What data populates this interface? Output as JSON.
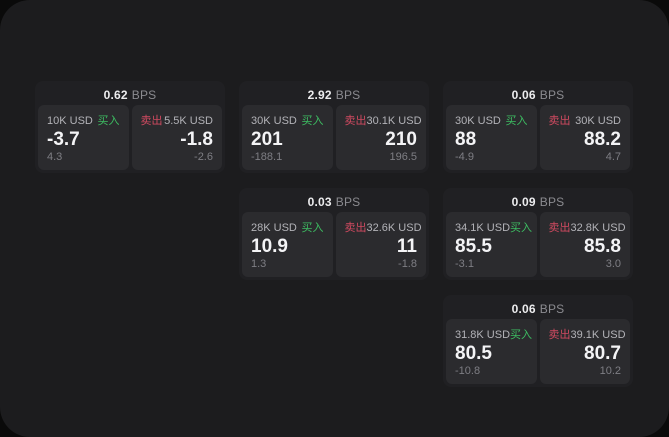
{
  "page": {
    "background": "#1c1c1e",
    "outside_background": "#0a0a0a"
  },
  "colors": {
    "buy_green": "#3dbd62",
    "sell_red": "#d04a60",
    "card_bg": "#202023",
    "panel_bg": "#2b2b2e"
  },
  "labels": {
    "buy": "买入",
    "sell": "卖出",
    "bps_unit": "BPS"
  },
  "cards": [
    {
      "bps": "0.62",
      "buy": {
        "size": "10K USD",
        "price": "-3.7",
        "sub": "4.3"
      },
      "sell": {
        "size": "5.5K USD",
        "price": "-1.8",
        "sub": "-2.6"
      }
    },
    {
      "bps": "2.92",
      "buy": {
        "size": "30K USD",
        "price": "201",
        "sub": "-188.1"
      },
      "sell": {
        "size": "30.1K USD",
        "price": "210",
        "sub": "196.5"
      }
    },
    {
      "bps": "0.06",
      "buy": {
        "size": "30K USD",
        "price": "88",
        "sub": "-4.9"
      },
      "sell": {
        "size": "30K USD",
        "price": "88.2",
        "sub": "4.7"
      }
    },
    {
      "bps": "0.03",
      "buy": {
        "size": "28K USD",
        "price": "10.9",
        "sub": "1.3"
      },
      "sell": {
        "size": "32.6K USD",
        "price": "11",
        "sub": "-1.8"
      }
    },
    {
      "bps": "0.09",
      "buy": {
        "size": "34.1K USD",
        "price": "85.5",
        "sub": "-3.1"
      },
      "sell": {
        "size": "32.8K USD",
        "price": "85.8",
        "sub": "3.0"
      }
    },
    {
      "bps": "0.06",
      "buy": {
        "size": "31.8K USD",
        "price": "80.5",
        "sub": "-10.8"
      },
      "sell": {
        "size": "39.1K USD",
        "price": "80.7",
        "sub": "10.2"
      }
    }
  ]
}
